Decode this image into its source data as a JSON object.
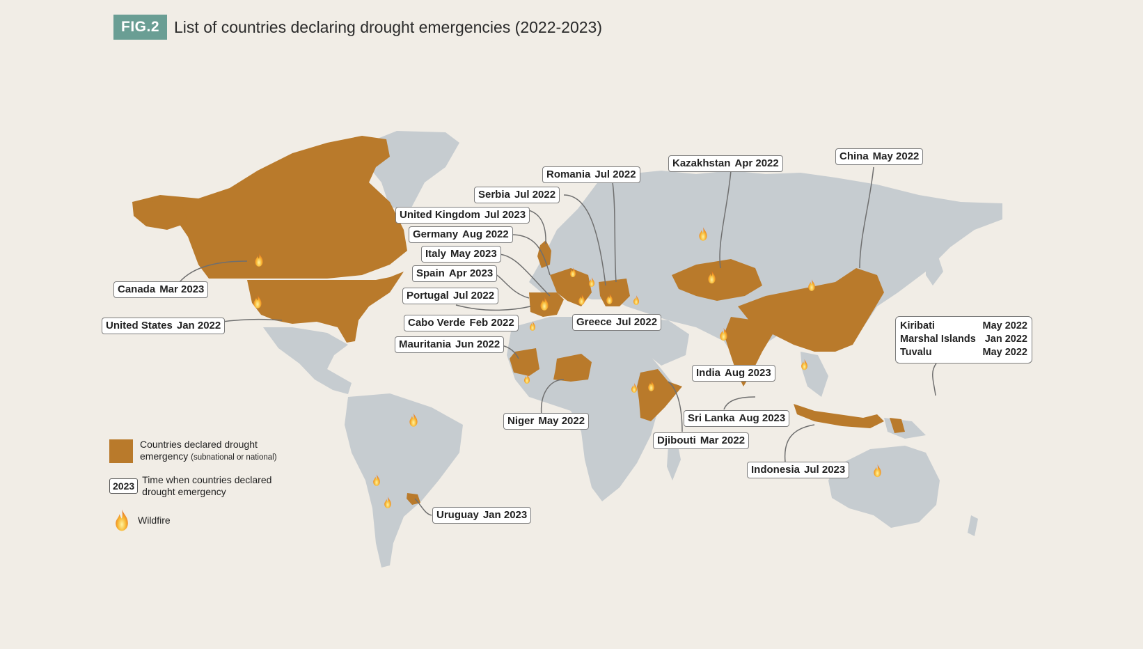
{
  "header": {
    "tag": "FIG.2",
    "title": "List of countries declaring drought emergencies (2022-2023)"
  },
  "colors": {
    "declared": "#b97a2b",
    "land": "#c6ccd0",
    "background": "#f1ede6",
    "tag": "#6a9e94",
    "leader": "#6f6f6f"
  },
  "labels": [
    {
      "key": "canada",
      "country": "Canada",
      "date": "Mar 2023"
    },
    {
      "key": "us",
      "country": "United States",
      "date": "Jan 2022"
    },
    {
      "key": "uk",
      "country": "United Kingdom",
      "date": "Jul 2023"
    },
    {
      "key": "germany",
      "country": "Germany",
      "date": "Aug 2022"
    },
    {
      "key": "italy",
      "country": "Italy",
      "date": "May 2023"
    },
    {
      "key": "spain",
      "country": "Spain",
      "date": "Apr 2023"
    },
    {
      "key": "portugal",
      "country": "Portugal",
      "date": "Jul 2022"
    },
    {
      "key": "caboverde",
      "country": "Cabo Verde",
      "date": "Feb 2022"
    },
    {
      "key": "mauritania",
      "country": "Mauritania",
      "date": "Jun 2022"
    },
    {
      "key": "serbia",
      "country": "Serbia",
      "date": "Jul 2022"
    },
    {
      "key": "romania",
      "country": "Romania",
      "date": "Jul 2022"
    },
    {
      "key": "greece",
      "country": "Greece",
      "date": "Jul 2022"
    },
    {
      "key": "kazakhstan",
      "country": "Kazakhstan",
      "date": "Apr 2022"
    },
    {
      "key": "china",
      "country": "China",
      "date": "May 2022"
    },
    {
      "key": "india",
      "country": "India",
      "date": "Aug 2023"
    },
    {
      "key": "srilanka",
      "country": "Sri Lanka",
      "date": "Aug 2023"
    },
    {
      "key": "niger",
      "country": "Niger",
      "date": "May 2022"
    },
    {
      "key": "djibouti",
      "country": "Djibouti",
      "date": "Mar 2022"
    },
    {
      "key": "indonesia",
      "country": "Indonesia",
      "date": "Jul 2023"
    },
    {
      "key": "uruguay",
      "country": "Uruguay",
      "date": "Jan 2023"
    }
  ],
  "pacific": [
    {
      "country": "Kiribati",
      "date": "May 2022"
    },
    {
      "country": "Marshal Islands",
      "date": "Jan 2022"
    },
    {
      "country": "Tuvalu",
      "date": "May 2022"
    }
  ],
  "legend": {
    "declared": "Countries declared drought",
    "declared_line2": "emergency",
    "declared_note": "(subnational or national)",
    "year_sample": "2023",
    "time": "Time when countries declared",
    "time_line2": "drought emergency",
    "wildfire": "Wildfire"
  },
  "wildfire_icon": "flame-icon"
}
